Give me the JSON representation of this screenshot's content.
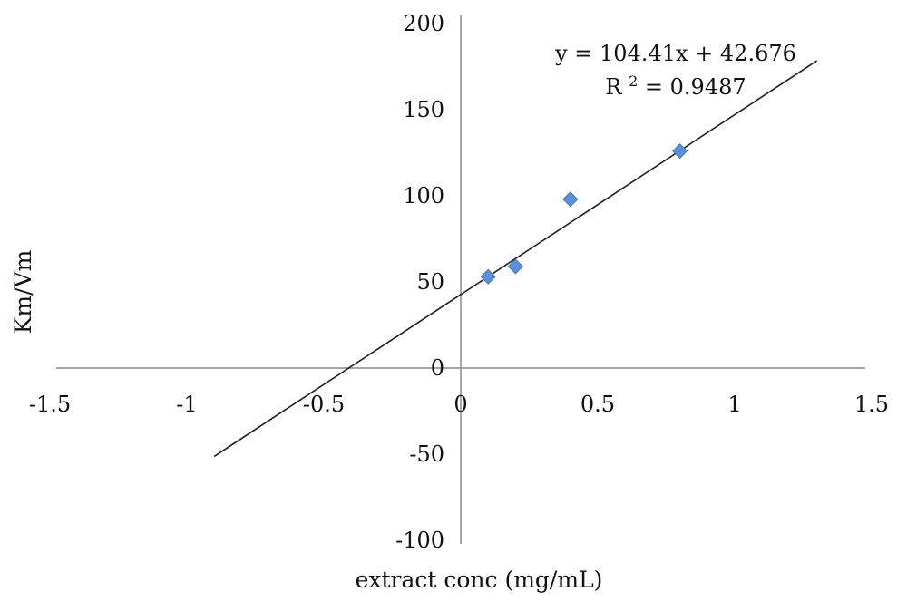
{
  "chart_data": {
    "type": "scatter",
    "xlabel": "extract conc (mg/mL)",
    "ylabel": "Km/Vm",
    "xlim": [
      -1.5,
      1.5
    ],
    "ylim": [
      -100,
      200
    ],
    "x_ticks": [
      "-1.5",
      "-1",
      "-0.5",
      "0",
      "0.5",
      "1",
      "1.5"
    ],
    "y_ticks": [
      "-100",
      "-50",
      "0",
      "50",
      "100",
      "150",
      "200"
    ],
    "points": [
      {
        "x": 0.1,
        "y": 53
      },
      {
        "x": 0.2,
        "y": 59
      },
      {
        "x": 0.4,
        "y": 98
      },
      {
        "x": 0.8,
        "y": 126
      }
    ],
    "trendline": {
      "slope": 104.41,
      "intercept": 42.676,
      "x_range": [
        -0.9,
        1.3
      ]
    },
    "annotations": {
      "equation": "y = 104.41x + 42.676",
      "r2_prefix": "R",
      "r2_sup": "2",
      "r2_value": " = 0.9487"
    },
    "colors": {
      "marker": "#5b8fd8",
      "trendline": "#1f1f1f",
      "axis": "#8a8a8a"
    },
    "grid": false
  }
}
